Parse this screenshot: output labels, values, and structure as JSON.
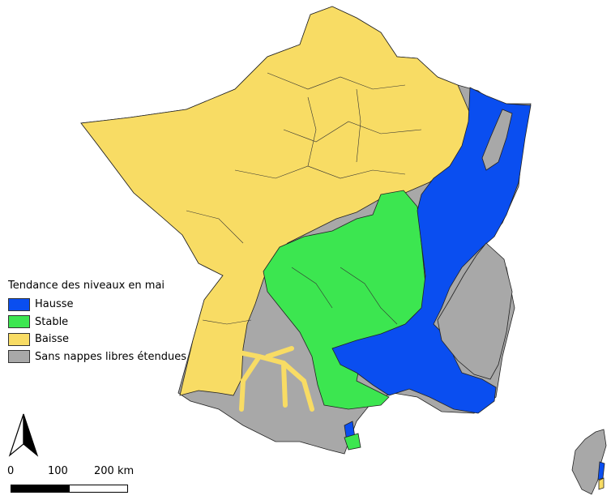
{
  "legend": {
    "title": "Tendance des niveaux en mai",
    "items": [
      {
        "label": "Hausse",
        "color": "#0a4ef0"
      },
      {
        "label": "Stable",
        "color": "#3ce650"
      },
      {
        "label": "Baisse",
        "color": "#f8dc64"
      },
      {
        "label": "Sans nappes libres étendues",
        "color": "#a8a8a8"
      }
    ]
  },
  "scale": {
    "label_0": "0",
    "label_100": "100",
    "label_200": "200 km"
  },
  "north_arrow": {
    "icon": "north-arrow-icon"
  },
  "colors": {
    "hausse": "#0a4ef0",
    "stable": "#3ce650",
    "baisse": "#f8dc64",
    "sans": "#a8a8a8",
    "border": "#222222"
  }
}
